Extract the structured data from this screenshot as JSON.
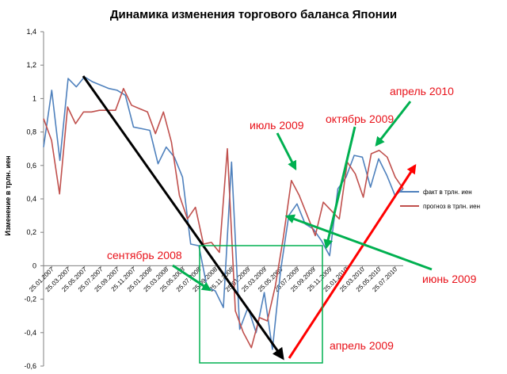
{
  "chart_data": {
    "type": "line",
    "title": "Динамика изменения торгового баланса Японии",
    "ylabel": "Изменение в трлн. иен",
    "xlabel": "",
    "ylim": [
      -0.6,
      1.4
    ],
    "yticks": [
      "1,4",
      "1,2",
      "1",
      "0,8",
      "0,6",
      "0,4",
      "0,2",
      "0",
      "-0,2",
      "-0,4",
      "-0,6"
    ],
    "ytick_values": [
      1.4,
      1.2,
      1.0,
      0.8,
      0.6,
      0.4,
      0.2,
      0.0,
      -0.2,
      -0.4,
      -0.6
    ],
    "xtick_labels": [
      "25.01.2007",
      "25.03.2007",
      "25.05.2007",
      "25.07.2007",
      "25.09.2007",
      "25.11.2007",
      "25.01.2008",
      "25.03.2008",
      "25.05.2008",
      "25.07.2008",
      "25.09.2008",
      "25.11.2008",
      "25.01.2009",
      "25.03.2009",
      "25.05.2009",
      "25.07.2009",
      "25.09.2009",
      "25.11.2009",
      "25.01.2010",
      "25.03.2010",
      "25.05.2010",
      "25.07.2010"
    ],
    "grid": false,
    "legend_position": "right",
    "series": [
      {
        "name": "факт в трлн. иен",
        "color": "#4f81bd",
        "values": [
          0.71,
          1.05,
          0.63,
          1.12,
          1.07,
          1.13,
          1.1,
          1.08,
          1.06,
          1.05,
          1.02,
          0.83,
          0.82,
          0.81,
          0.61,
          0.71,
          0.65,
          0.53,
          0.13,
          0.12,
          -0.13,
          -0.15,
          -0.25,
          0.62,
          -0.38,
          -0.25,
          -0.4,
          -0.16,
          -0.5,
          -0.03,
          0.3,
          0.37,
          0.25,
          0.22,
          0.15,
          0.06,
          0.46,
          0.53,
          0.66,
          0.65,
          0.47,
          0.64,
          0.54,
          0.42,
          0.46
        ]
      },
      {
        "name": "прогноз в трлн. иен",
        "color": "#c0504d",
        "values": [
          0.88,
          0.75,
          0.43,
          0.95,
          0.85,
          0.92,
          0.92,
          0.93,
          0.93,
          0.93,
          1.06,
          0.96,
          0.94,
          0.92,
          0.79,
          0.92,
          0.74,
          0.42,
          0.28,
          0.35,
          0.13,
          0.14,
          0.08,
          0.7,
          -0.27,
          -0.4,
          -0.49,
          -0.31,
          -0.33,
          -0.12,
          0.17,
          0.51,
          0.42,
          0.3,
          0.18,
          0.38,
          0.33,
          0.28,
          0.62,
          0.55,
          0.41,
          0.67,
          0.69,
          0.65,
          0.53,
          0.46
        ]
      }
    ],
    "annotations": [
      {
        "text": "апрель 2010"
      },
      {
        "text": "октябрь 2009"
      },
      {
        "text": "июль 2009"
      },
      {
        "text": "сентябрь 2008"
      },
      {
        "text": "июнь 2009"
      },
      {
        "text": "апрель 2009"
      }
    ]
  }
}
